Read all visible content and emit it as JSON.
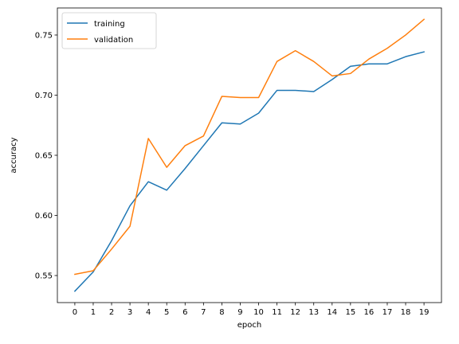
{
  "chart_data": {
    "type": "line",
    "title": "",
    "xlabel": "epoch",
    "ylabel": "accuracy",
    "x": [
      0,
      1,
      2,
      3,
      4,
      5,
      6,
      7,
      8,
      9,
      10,
      11,
      12,
      13,
      14,
      15,
      16,
      17,
      18,
      19
    ],
    "xlim": [
      -0.95,
      19.95
    ],
    "ylim": [
      0.5275,
      0.7725
    ],
    "yticks": [
      0.55,
      0.6,
      0.65,
      0.7,
      0.75
    ],
    "ytick_labels": [
      "0.55",
      "0.60",
      "0.65",
      "0.70",
      "0.75"
    ],
    "xtick_labels": [
      "0",
      "1",
      "2",
      "3",
      "4",
      "5",
      "6",
      "7",
      "8",
      "9",
      "10",
      "11",
      "12",
      "13",
      "14",
      "15",
      "16",
      "17",
      "18",
      "19"
    ],
    "grid": false,
    "legend_position": "top-left",
    "series": [
      {
        "name": "training",
        "color": "#1f77b4",
        "values": [
          0.537,
          0.553,
          0.579,
          0.608,
          0.628,
          0.621,
          0.639,
          0.658,
          0.677,
          0.676,
          0.685,
          0.704,
          0.704,
          0.703,
          0.713,
          0.724,
          0.726,
          0.726,
          0.732,
          0.736
        ]
      },
      {
        "name": "validation",
        "color": "#ff7f0e",
        "values": [
          0.551,
          0.554,
          0.572,
          0.591,
          0.664,
          0.64,
          0.658,
          0.666,
          0.699,
          0.698,
          0.698,
          0.728,
          0.737,
          0.728,
          0.716,
          0.718,
          0.73,
          0.739,
          0.75,
          0.763
        ]
      }
    ]
  }
}
